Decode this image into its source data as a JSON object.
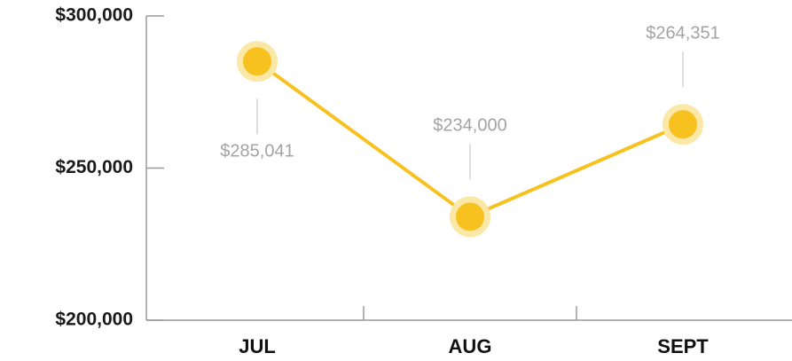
{
  "chart_data": {
    "type": "line",
    "categories": [
      "JUL",
      "AUG",
      "SEPT"
    ],
    "series": [
      {
        "color": "#f7c11f",
        "values": [
          285041,
          234000,
          264351
        ],
        "value_labels": [
          "$285,041",
          "$234,000",
          "$264,351"
        ]
      }
    ],
    "ylim": [
      200000,
      300000
    ],
    "yticks": [
      {
        "value": 200000,
        "label": "$200,000"
      },
      {
        "value": 250000,
        "label": "$250,000"
      },
      {
        "value": 300000,
        "label": "$300,000"
      }
    ]
  }
}
